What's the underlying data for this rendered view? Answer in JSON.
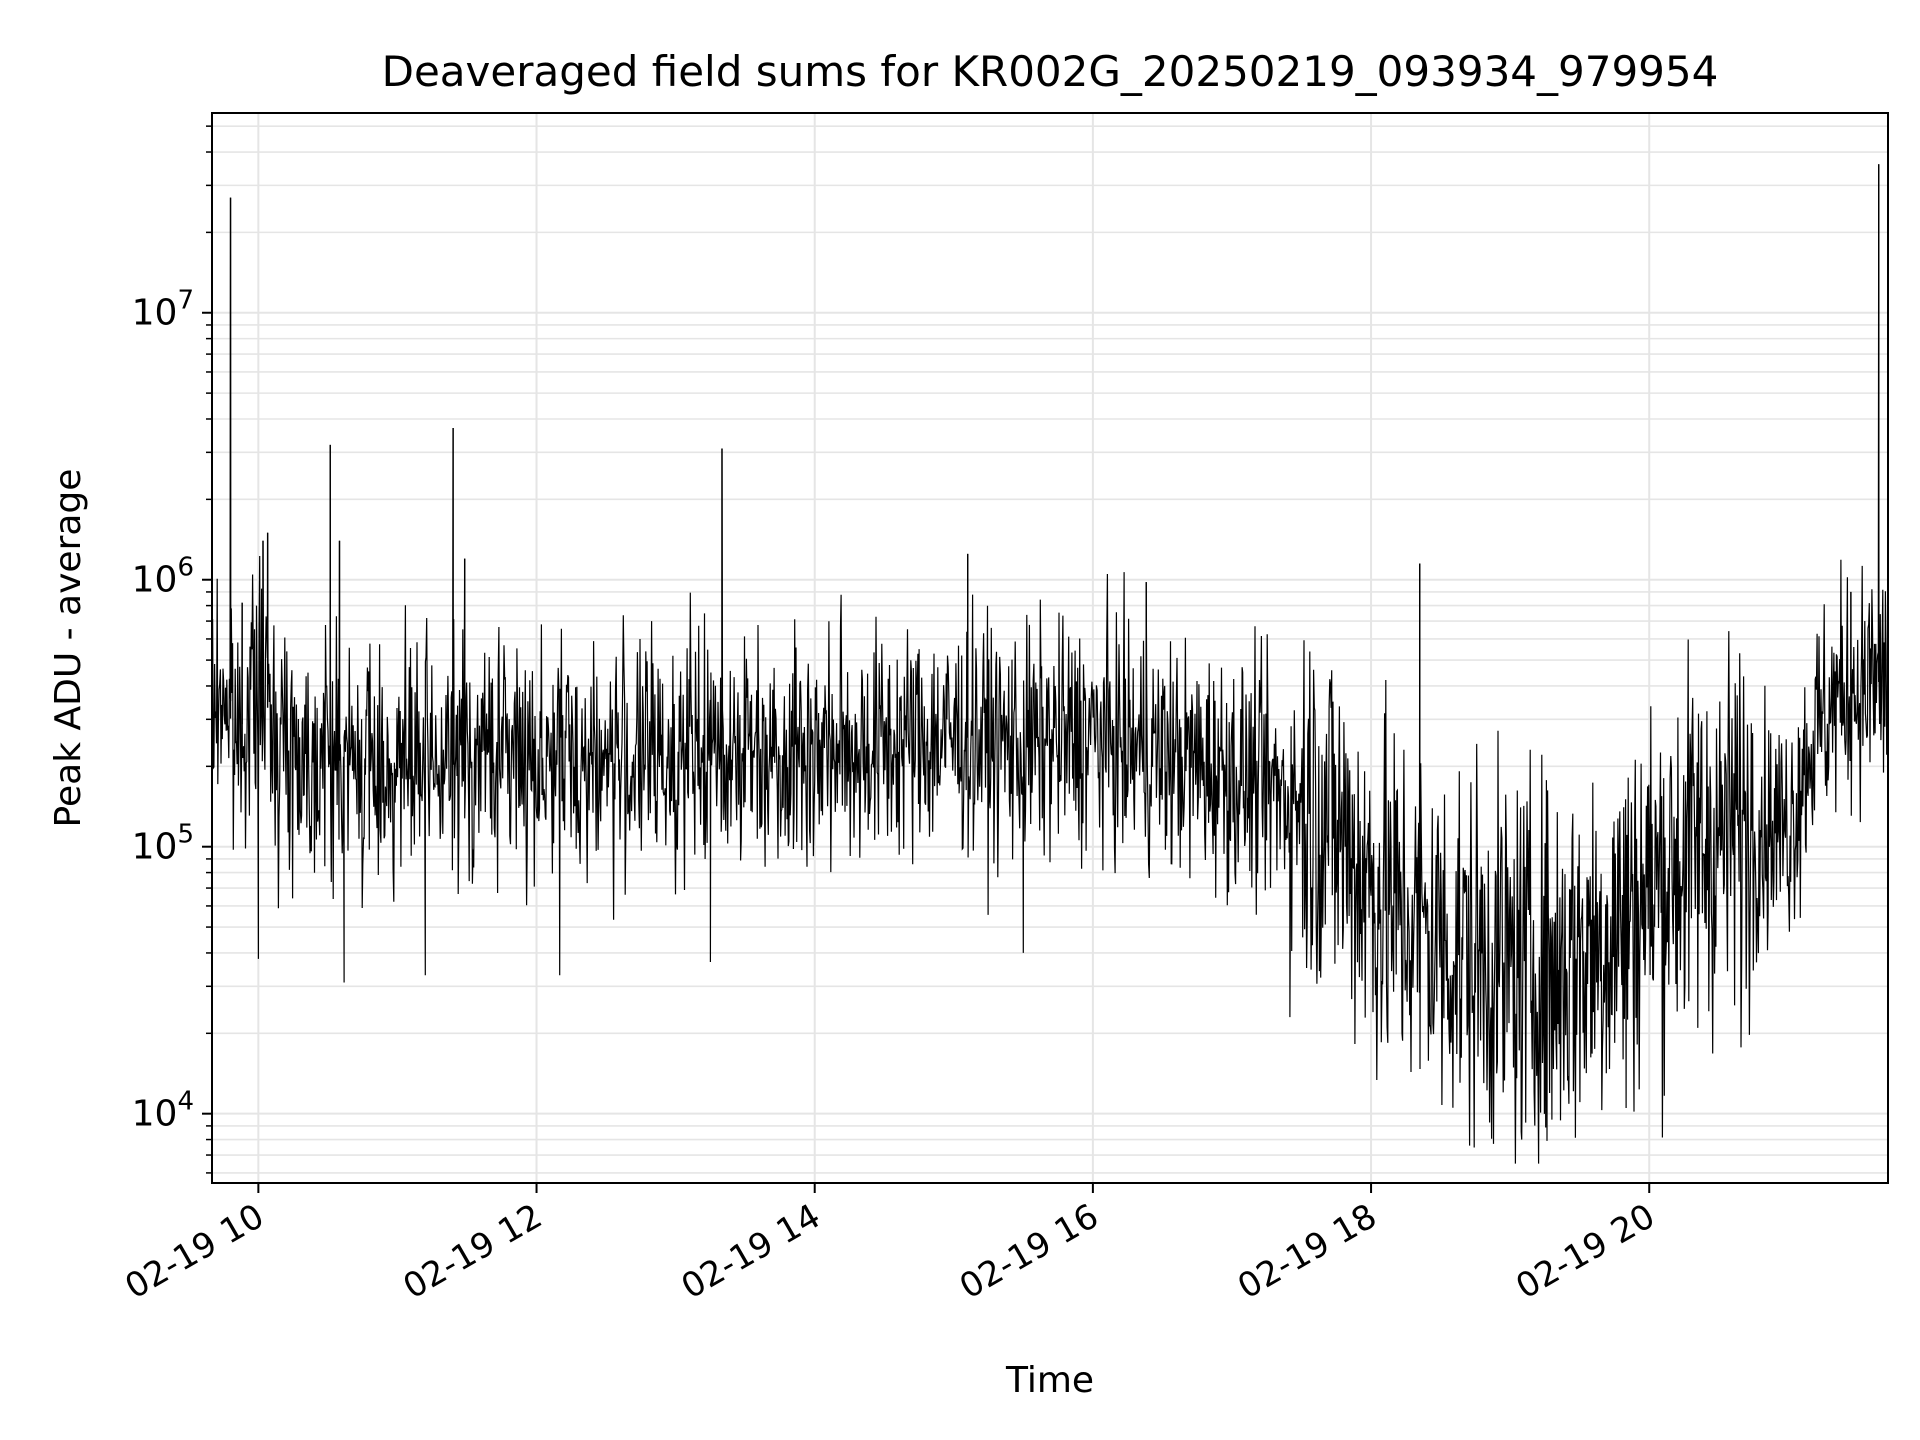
{
  "chart_data": {
    "type": "line",
    "title": "Deaveraged field sums for KR002G_20250219_093934_979954",
    "xlabel": "Time",
    "ylabel": "Peak ADU - average",
    "yscale": "log",
    "grid": true,
    "grid_minor": true,
    "legend": "none",
    "line_color": "#000000",
    "grid_color": "#e5e5e5",
    "xlim": [
      "02-19 09:40",
      "02-19 21:43"
    ],
    "ylim": [
      5500,
      56000000
    ],
    "xticks": [
      {
        "value": "02-19 10:00",
        "label": "02-19 10"
      },
      {
        "value": "02-19 12:00",
        "label": "02-19 12"
      },
      {
        "value": "02-19 14:00",
        "label": "02-19 14"
      },
      {
        "value": "02-19 16:00",
        "label": "02-19 16"
      },
      {
        "value": "02-19 18:00",
        "label": "02-19 18"
      },
      {
        "value": "02-19 20:00",
        "label": "02-19 20"
      }
    ],
    "yticks": [
      {
        "value": 10000,
        "base": "10",
        "exp": "4"
      },
      {
        "value": 100000,
        "base": "10",
        "exp": "5"
      },
      {
        "value": 1000000,
        "base": "10",
        "exp": "6"
      },
      {
        "value": 10000000,
        "base": "10",
        "exp": "7"
      }
    ],
    "series": [
      {
        "x": [
          "02-19 09:40",
          "02-19 09:45",
          "02-19 09:50",
          "02-19 10:00",
          "02-19 10:10",
          "02-19 10:20",
          "02-19 10:30",
          "02-19 10:40",
          "02-19 11:00",
          "02-19 11:20",
          "02-19 11:40",
          "02-19 12:00",
          "02-19 12:30",
          "02-19 13:00",
          "02-19 13:30",
          "02-19 14:00",
          "02-19 14:30",
          "02-19 15:00",
          "02-19 15:30",
          "02-19 16:00",
          "02-19 16:30",
          "02-19 17:00",
          "02-19 17:20",
          "02-19 17:40",
          "02-19 18:00",
          "02-19 18:20",
          "02-19 18:40",
          "02-19 19:00",
          "02-19 19:20",
          "02-19 19:40",
          "02-19 20:00",
          "02-19 20:20",
          "02-19 20:40",
          "02-19 21:00",
          "02-19 21:10",
          "02-19 21:20",
          "02-19 21:30",
          "02-19 21:43"
        ],
        "y": [
          300000,
          400000,
          250000,
          400000,
          250000,
          220000,
          220000,
          200000,
          200000,
          200000,
          230000,
          220000,
          210000,
          220000,
          240000,
          230000,
          240000,
          260000,
          240000,
          260000,
          220000,
          190000,
          160000,
          140000,
          70000,
          50000,
          40000,
          35000,
          35000,
          45000,
          70000,
          100000,
          120000,
          120000,
          250000,
          350000,
          400000,
          420000
        ]
      }
    ],
    "spikes": [
      {
        "x": "02-19 09:48",
        "y": 27000000
      },
      {
        "x": "02-19 09:53",
        "y": 820000
      },
      {
        "x": "02-19 10:02",
        "y": 1400000
      },
      {
        "x": "02-19 10:04",
        "y": 1500000
      },
      {
        "x": "02-19 10:31",
        "y": 3200000
      },
      {
        "x": "02-19 10:35",
        "y": 1400000
      },
      {
        "x": "02-19 11:24",
        "y": 3700000
      },
      {
        "x": "02-19 11:29",
        "y": 1200000
      },
      {
        "x": "02-19 13:20",
        "y": 3100000
      },
      {
        "x": "02-19 15:06",
        "y": 1250000
      },
      {
        "x": "02-19 16:23",
        "y": 980000
      },
      {
        "x": "02-19 18:21",
        "y": 1150000
      },
      {
        "x": "02-19 21:27",
        "y": 900000
      },
      {
        "x": "02-19 21:39",
        "y": 36000000
      }
    ],
    "dips": [
      {
        "x": "02-19 10:00",
        "y": 38000
      },
      {
        "x": "02-19 10:37",
        "y": 31000
      },
      {
        "x": "02-19 11:12",
        "y": 33000
      },
      {
        "x": "02-19 12:10",
        "y": 33000
      },
      {
        "x": "02-19 13:15",
        "y": 37000
      },
      {
        "x": "02-19 15:30",
        "y": 40000
      },
      {
        "x": "02-19 17:25",
        "y": 23000
      },
      {
        "x": "02-19 19:05",
        "y": 8000
      },
      {
        "x": "02-19 19:18",
        "y": 9500
      },
      {
        "x": "02-19 19:50",
        "y": 10500
      }
    ]
  }
}
